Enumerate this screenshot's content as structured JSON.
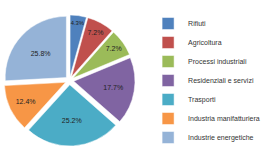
{
  "chart_data": {
    "type": "pie",
    "categories": [
      "Rifiuti",
      "Agricoltura",
      "Processi industriali",
      "Residenziali e servizi",
      "Trasporti",
      "Industria manifatturiera",
      "Industrie energetiche"
    ],
    "values": [
      4.3,
      7.2,
      7.2,
      17.7,
      25.2,
      12.4,
      25.8
    ],
    "value_labels": [
      "4.3%",
      "7.2%",
      "7.2%",
      "17.7%",
      "25.2%",
      "12.4%",
      "25.8%"
    ],
    "colors": [
      "#4f81bd",
      "#c0504d",
      "#9bbb59",
      "#8064a2",
      "#4bacc6",
      "#f79646",
      "#95b3d7"
    ],
    "data_labels": true,
    "legend": "right"
  }
}
